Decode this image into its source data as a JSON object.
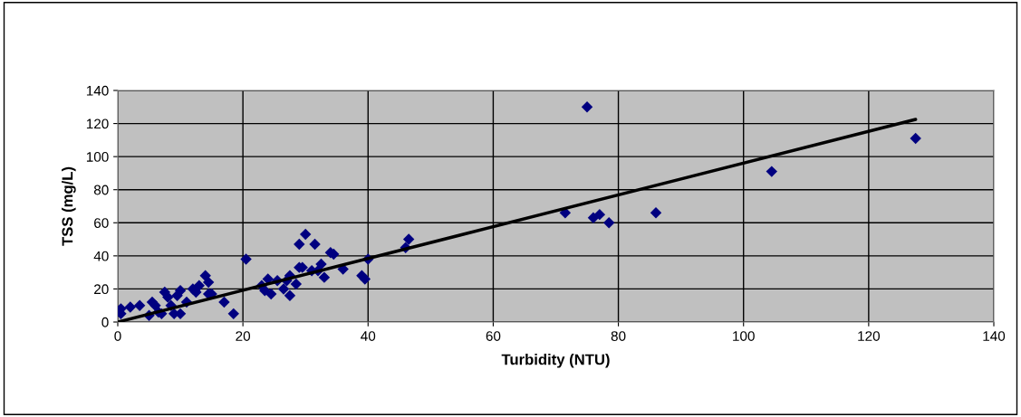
{
  "chart_data": {
    "type": "scatter",
    "xlabel": "Turbidity (NTU)",
    "ylabel": "TSS (mg/L)",
    "xlim": [
      0,
      140
    ],
    "xticks": [
      0,
      20,
      40,
      60,
      80,
      100,
      120,
      140
    ],
    "ylim": [
      0,
      140
    ],
    "yticks": [
      0,
      20,
      40,
      60,
      80,
      100,
      120,
      140
    ],
    "grid": true,
    "series": [
      {
        "marker": "diamond",
        "color": "#000080",
        "x": [
          0.5,
          0.5,
          2,
          3.5,
          5,
          5.5,
          6,
          6.5,
          7,
          7.5,
          8,
          8.5,
          9,
          9.5,
          10,
          10,
          11,
          12,
          12.5,
          13,
          14,
          14.5,
          14.5,
          15,
          17,
          18.5,
          20.5,
          23,
          23.5,
          24,
          24.5,
          25.5,
          26.5,
          27,
          27.5,
          27.5,
          28.5,
          29,
          29,
          29.5,
          30,
          31,
          31.5,
          32,
          32.5,
          33,
          34,
          34.5,
          36,
          39,
          39.5,
          40,
          46,
          46.5,
          71.5,
          75,
          76,
          77,
          78.5,
          86,
          104.5,
          127.5
        ],
        "values": [
          8,
          5,
          9,
          10,
          4,
          12,
          10,
          6,
          5,
          18,
          15,
          10,
          5,
          16,
          19,
          5,
          12,
          20,
          18,
          22,
          28,
          24,
          17,
          17,
          12,
          5,
          38,
          22,
          19,
          26,
          17,
          25,
          20,
          25,
          28,
          16,
          23,
          33,
          47,
          33,
          53,
          31,
          47,
          31,
          35,
          27,
          42,
          41,
          32,
          28,
          26,
          38,
          45,
          50,
          66,
          130,
          63,
          65,
          60,
          66,
          91,
          111
        ]
      },
      {
        "type": "line",
        "color": "#000000",
        "x": [
          0,
          127.5
        ],
        "values": [
          0,
          122.5
        ]
      }
    ]
  }
}
